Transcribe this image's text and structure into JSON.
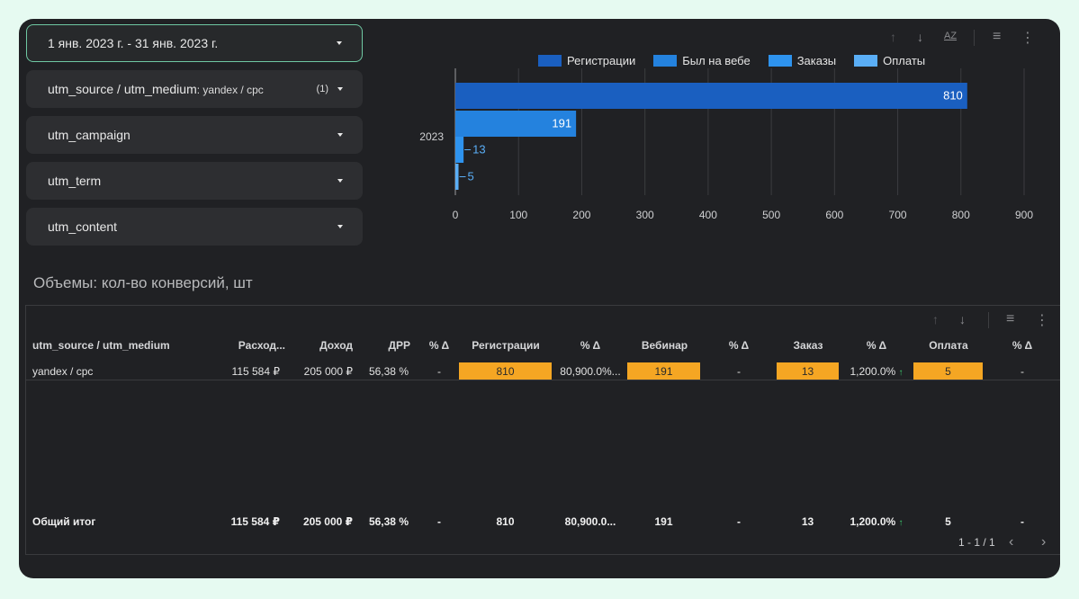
{
  "filters": {
    "date_range": "1 янв. 2023 г. - 31 янв. 2023 г.",
    "source_medium": {
      "label": "utm_source / utm_medium",
      "value": ": yandex / cpc",
      "count": "(1)"
    },
    "campaign": "utm_campaign",
    "term": "utm_term",
    "content": "utm_content"
  },
  "chart_data": {
    "type": "bar",
    "orientation": "horizontal",
    "categories": [
      "2023"
    ],
    "series": [
      {
        "name": "Регистрации",
        "values": [
          810
        ],
        "color": "#1a5fc0"
      },
      {
        "name": "Был на вебе",
        "values": [
          191
        ],
        "color": "#2482de"
      },
      {
        "name": "Заказы",
        "values": [
          13
        ],
        "color": "#2e93ee"
      },
      {
        "name": "Оплаты",
        "values": [
          5
        ],
        "color": "#5aaef6"
      }
    ],
    "xlim": [
      0,
      900
    ],
    "xticks": [
      "0",
      "100",
      "200",
      "300",
      "400",
      "500",
      "600",
      "700",
      "800",
      "900"
    ],
    "grid": true,
    "legend": "top",
    "data_labels": [
      "810",
      "191",
      "13",
      "5"
    ]
  },
  "section_title": "Объемы: кол-во конверсий, шт",
  "table": {
    "headers": [
      "utm_source / utm_medium",
      "Расход...",
      "Доход",
      "ДРР",
      "% Δ",
      "Регистрации",
      "% Δ",
      "Вебинар",
      "% Δ",
      "Заказ",
      "% Δ",
      "Оплата",
      "% Δ"
    ],
    "row": [
      "yandex / cpc",
      "115 584 ₽",
      "205 000 ₽",
      "56,38 %",
      "-",
      "810",
      "80,900.0%...",
      "191",
      "-",
      "13",
      "1,200.0%",
      "5",
      "-"
    ],
    "total": [
      "Общий итог",
      "115 584 ₽",
      "205 000 ₽",
      "56,38 %",
      "-",
      "810",
      "80,900.0...",
      "191",
      "-",
      "13",
      "1,200.0%",
      "5",
      "-"
    ],
    "highlight_color": "#f5a623",
    "up_arrow": "↑",
    "pager": "1 - 1 / 1"
  },
  "icons": {
    "sort_up": "↑",
    "sort_down": "↓",
    "az": "AZ",
    "filter": "≡",
    "more": "⋮",
    "prev": "‹",
    "next": "›"
  }
}
